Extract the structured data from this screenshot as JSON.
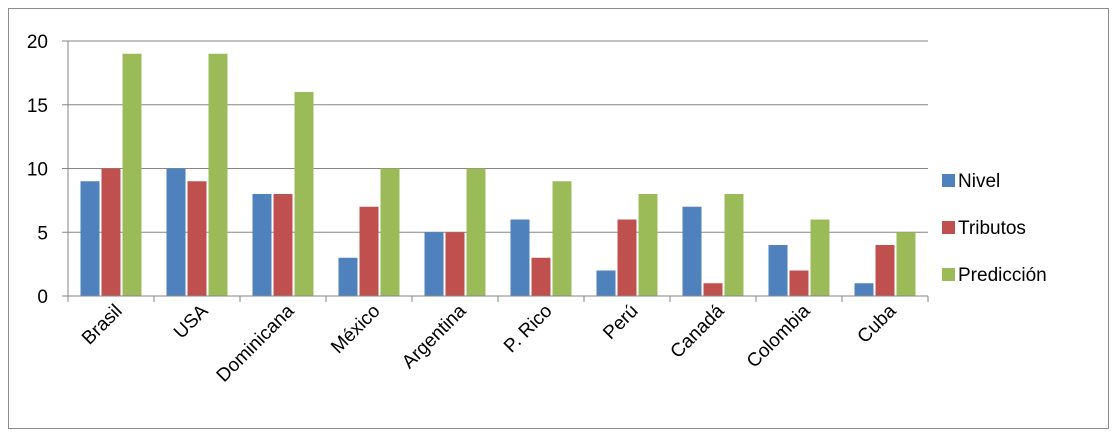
{
  "chart_data": {
    "type": "bar",
    "categories": [
      "Brasil",
      "USA",
      "Dominicana",
      "México",
      "Argentina",
      "P. Rico",
      "Perú",
      "Canadá",
      "Colombia",
      "Cuba"
    ],
    "series": [
      {
        "name": "Nivel",
        "color": "#4f81bd",
        "values": [
          9,
          10,
          8,
          3,
          5,
          6,
          2,
          7,
          4,
          1
        ]
      },
      {
        "name": "Tributos",
        "color": "#c0504d",
        "values": [
          10,
          9,
          8,
          7,
          5,
          3,
          6,
          1,
          2,
          4
        ]
      },
      {
        "name": "Predicción",
        "color": "#9bbb59",
        "values": [
          19,
          19,
          16,
          10,
          10,
          9,
          8,
          8,
          6,
          5
        ]
      }
    ],
    "ylim": [
      0,
      20
    ],
    "yticks": [
      0,
      5,
      10,
      15,
      20
    ],
    "grid": true,
    "legend": "right",
    "title": "",
    "xlabel": "",
    "ylabel": ""
  }
}
